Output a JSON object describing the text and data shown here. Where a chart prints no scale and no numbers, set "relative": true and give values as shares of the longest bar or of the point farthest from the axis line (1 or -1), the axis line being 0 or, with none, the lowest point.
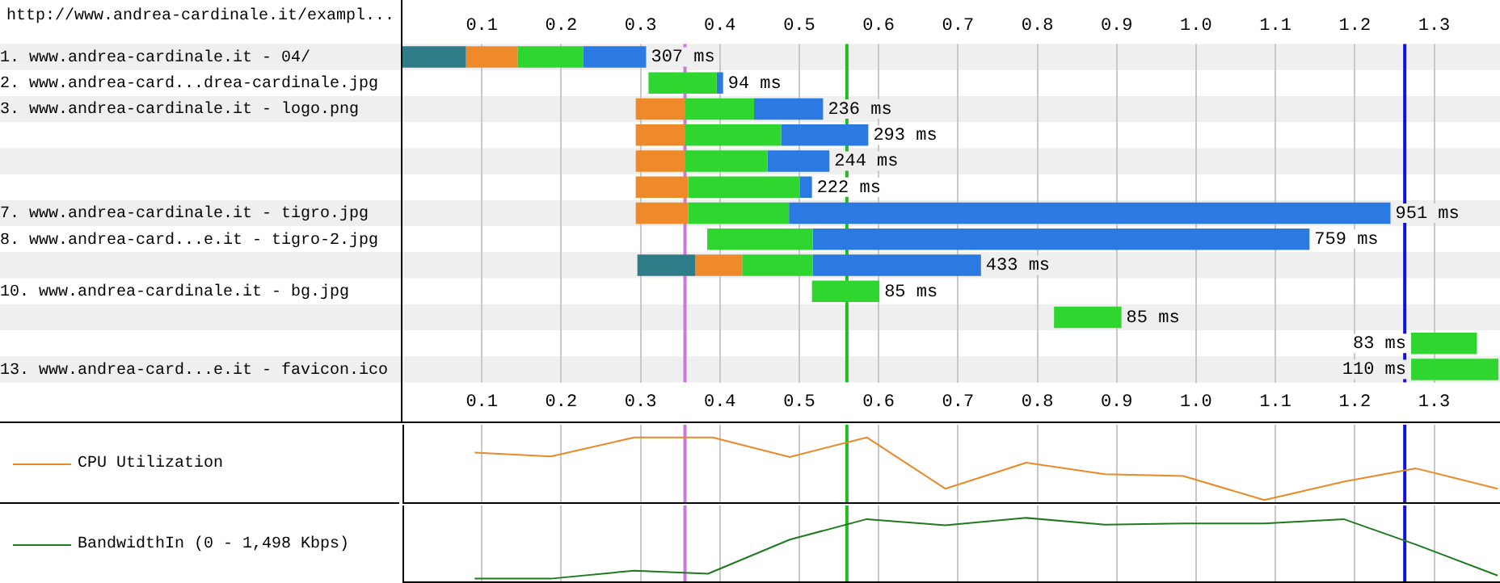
{
  "chart_data": [
    {
      "type": "bar",
      "title": "http://www.andrea-cardinale.it/exampl...",
      "orientation": "horizontal",
      "categories": [
        "1. www.andrea-cardinale.it - 04/",
        "2. www.andrea-card...drea-cardinale.jpg",
        "3. www.andrea-cardinale.it - logo.png",
        null,
        null,
        null,
        "7. www.andrea-cardinale.it - tigro.jpg",
        "8. www.andrea-card...e.it - tigro-2.jpg",
        null,
        "10. www.andrea-cardinale.it - bg.jpg",
        null,
        null,
        "13. www.andrea-card...e.it - favicon.ico"
      ],
      "series": [
        {
          "color": "#2e7c87",
          "base": [
            0,
            null,
            null,
            null,
            null,
            null,
            null,
            null,
            0.296,
            null,
            null,
            null,
            null
          ],
          "values": [
            0.08,
            null,
            null,
            null,
            null,
            null,
            null,
            null,
            0.073,
            null,
            null,
            null,
            null
          ]
        },
        {
          "color": "#ef8a2a",
          "base": [
            0.08,
            null,
            0.294,
            0.294,
            0.294,
            0.294,
            0.294,
            null,
            0.369,
            null,
            null,
            null,
            null
          ],
          "values": [
            0.065,
            null,
            0.062,
            0.062,
            0.062,
            0.066,
            0.066,
            null,
            0.059,
            null,
            null,
            null,
            null
          ]
        },
        {
          "color": "#2fd62f",
          "base": [
            0.145,
            0.31,
            0.356,
            0.356,
            0.356,
            0.36,
            0.36,
            0.384,
            0.428,
            0.516,
            0.821,
            1.271,
            1.271
          ],
          "values": [
            0.083,
            0.086,
            0.087,
            0.121,
            0.104,
            0.141,
            0.127,
            0.133,
            0.089,
            0.085,
            0.085,
            0.083,
            0.11
          ]
        },
        {
          "color": "#2a7ae2",
          "base": [
            0.228,
            0.396,
            0.443,
            0.477,
            0.46,
            0.501,
            0.487,
            0.517,
            0.517,
            null,
            null,
            null,
            null
          ],
          "values": [
            0.079,
            0.008,
            0.087,
            0.11,
            0.078,
            0.015,
            0.758,
            0.626,
            0.212,
            null,
            null,
            null,
            null
          ]
        }
      ],
      "totals": [
        "307 ms",
        "94 ms",
        "236 ms",
        "293 ms",
        "244 ms",
        "222 ms",
        "951 ms",
        "759 ms",
        "433 ms",
        "85 ms",
        "85 ms",
        "83 ms",
        "110 ms"
      ],
      "xlim": [
        0,
        1.383
      ],
      "xticks": [
        0.1,
        0.2,
        0.3,
        0.4,
        0.5,
        0.6,
        0.7,
        0.8,
        0.9,
        {
          "value": 1,
          "label": "1.0"
        },
        1.1,
        1.2,
        1.3
      ],
      "x2lim": [
        0,
        1.383
      ],
      "x2ticks": [
        0.1,
        0.2,
        0.3,
        0.4,
        0.5,
        0.6,
        0.7,
        0.8,
        0.9,
        {
          "value": 1,
          "label": "1.0"
        },
        1.1,
        1.2,
        1.3
      ],
      "grid": "x",
      "ref_lines": [
        {
          "axis": "x",
          "value": 0.356,
          "color": "#cc77dd"
        },
        {
          "axis": "x",
          "value": 0.56,
          "color": "#22bb22"
        },
        {
          "axis": "x",
          "value": 1.263,
          "color": "#1111dd"
        }
      ]
    },
    {
      "type": "line",
      "relative": true,
      "legend": "left",
      "tick_labels": false,
      "grid": "x",
      "x": [
        0.091,
        0.187,
        0.292,
        0.391,
        0.488,
        0.585,
        0.684,
        0.786,
        0.885,
        0.984,
        1.086,
        1.186,
        1.277,
        1.38
      ],
      "series": [
        {
          "name": "CPU Utilization",
          "color": "#e8892a",
          "values": [
            0.76,
            0.7,
            1,
            1,
            0.69,
            1,
            0.19,
            0.6,
            0.42,
            0.39,
            0.01,
            0.3,
            0.51,
            0.19
          ]
        }
      ],
      "xlim": [
        0,
        1.383
      ],
      "xticks": [
        0.1,
        0.2,
        0.3,
        0.4,
        0.5,
        0.6,
        0.7,
        0.8,
        0.9,
        1,
        1.1,
        1.2,
        1.3
      ],
      "ref_lines": [
        {
          "axis": "x",
          "value": 0.356,
          "color": "#cc77dd"
        },
        {
          "axis": "x",
          "value": 0.56,
          "color": "#22bb22"
        },
        {
          "axis": "x",
          "value": 1.263,
          "color": "#1111dd"
        }
      ]
    },
    {
      "type": "line",
      "relative": true,
      "legend": "left",
      "tick_labels": false,
      "grid": "x",
      "x": [
        0.091,
        0.187,
        0.292,
        0.385,
        0.488,
        0.585,
        0.684,
        0.786,
        0.885,
        0.984,
        1.086,
        1.186,
        1.277,
        1.38
      ],
      "series": [
        {
          "name": "BandwidthIn (0 - 1,498 Kbps)",
          "color": "#1e7a1e",
          "values": [
            0.02,
            0.02,
            0.15,
            0.1,
            0.65,
            0.98,
            0.88,
            1,
            0.89,
            0.91,
            0.91,
            0.98,
            0.57,
            0.07
          ]
        }
      ],
      "xlim": [
        0,
        1.383
      ],
      "xticks": [
        0.1,
        0.2,
        0.3,
        0.4,
        0.5,
        0.6,
        0.7,
        0.8,
        0.9,
        1,
        1.1,
        1.2,
        1.3
      ],
      "ref_lines": [
        {
          "axis": "x",
          "value": 0.356,
          "color": "#cc77dd"
        },
        {
          "axis": "x",
          "value": 0.56,
          "color": "#22bb22"
        },
        {
          "axis": "x",
          "value": 1.263,
          "color": "#1111dd"
        }
      ]
    }
  ]
}
